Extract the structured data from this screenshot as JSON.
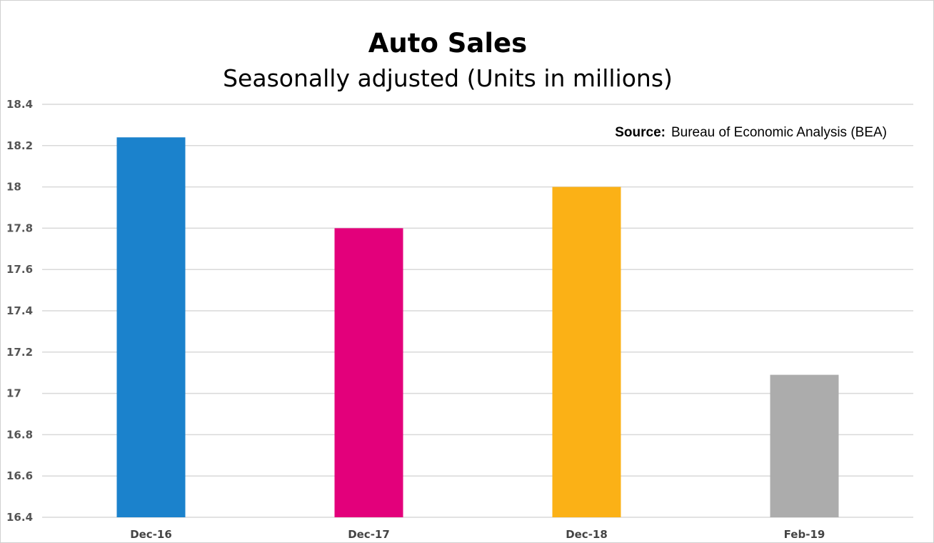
{
  "chart_data": {
    "type": "bar",
    "title": "Auto Sales",
    "subtitle": "Seasonally adjusted (Units in millions)",
    "categories": [
      "Dec-16",
      "Dec-17",
      "Dec-18",
      "Feb-19"
    ],
    "values": [
      18.24,
      17.8,
      18.0,
      17.09
    ],
    "colors": [
      "#1b82cc",
      "#e3007b",
      "#fbb116",
      "#acacac"
    ],
    "ylim": [
      16.4,
      18.4
    ],
    "yticks": [
      "16.4",
      "16.6",
      "16.8",
      "17",
      "17.2",
      "17.4",
      "17.6",
      "17.8",
      "18",
      "18.2",
      "18.4"
    ],
    "grid": true,
    "legend": "none",
    "xlabel": "",
    "ylabel": ""
  },
  "source": {
    "label": "Source:",
    "value": "Bureau of Economic Analysis (BEA)"
  }
}
